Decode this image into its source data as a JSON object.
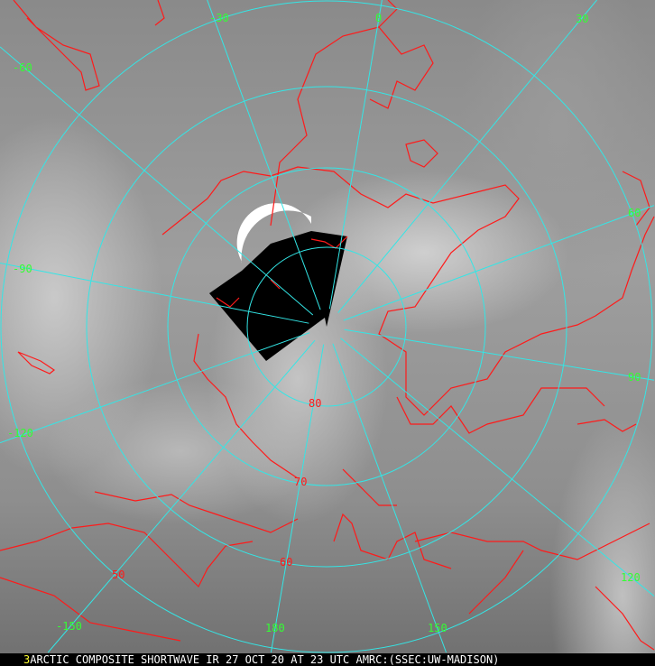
{
  "image": {
    "type": "polar stereographic satellite composite",
    "colors": {
      "grid": "#33e6e6",
      "coastline": "#ff1a1a",
      "lon_label": "#33ff33",
      "lat_label": "#ff1a1a",
      "caption_number": "#ffff33",
      "caption_text": "#ffffff"
    }
  },
  "longitude_labels": [
    {
      "text": "-30"
    },
    {
      "text": "0"
    },
    {
      "text": "30"
    },
    {
      "text": "-60"
    },
    {
      "text": "60"
    },
    {
      "text": "-90"
    },
    {
      "text": "90"
    },
    {
      "text": "-120"
    },
    {
      "text": "120"
    },
    {
      "text": "-150"
    },
    {
      "text": "180"
    },
    {
      "text": "150"
    }
  ],
  "latitude_labels": [
    {
      "text": "80"
    },
    {
      "text": "70"
    },
    {
      "text": "60"
    },
    {
      "text": "50"
    }
  ],
  "caption": {
    "number": "3",
    "text": "ARCTIC COMPOSITE SHORTWAVE IR 27 OCT 20 AT 23 UTC AMRC:(SSEC:UW-MADISON)"
  }
}
